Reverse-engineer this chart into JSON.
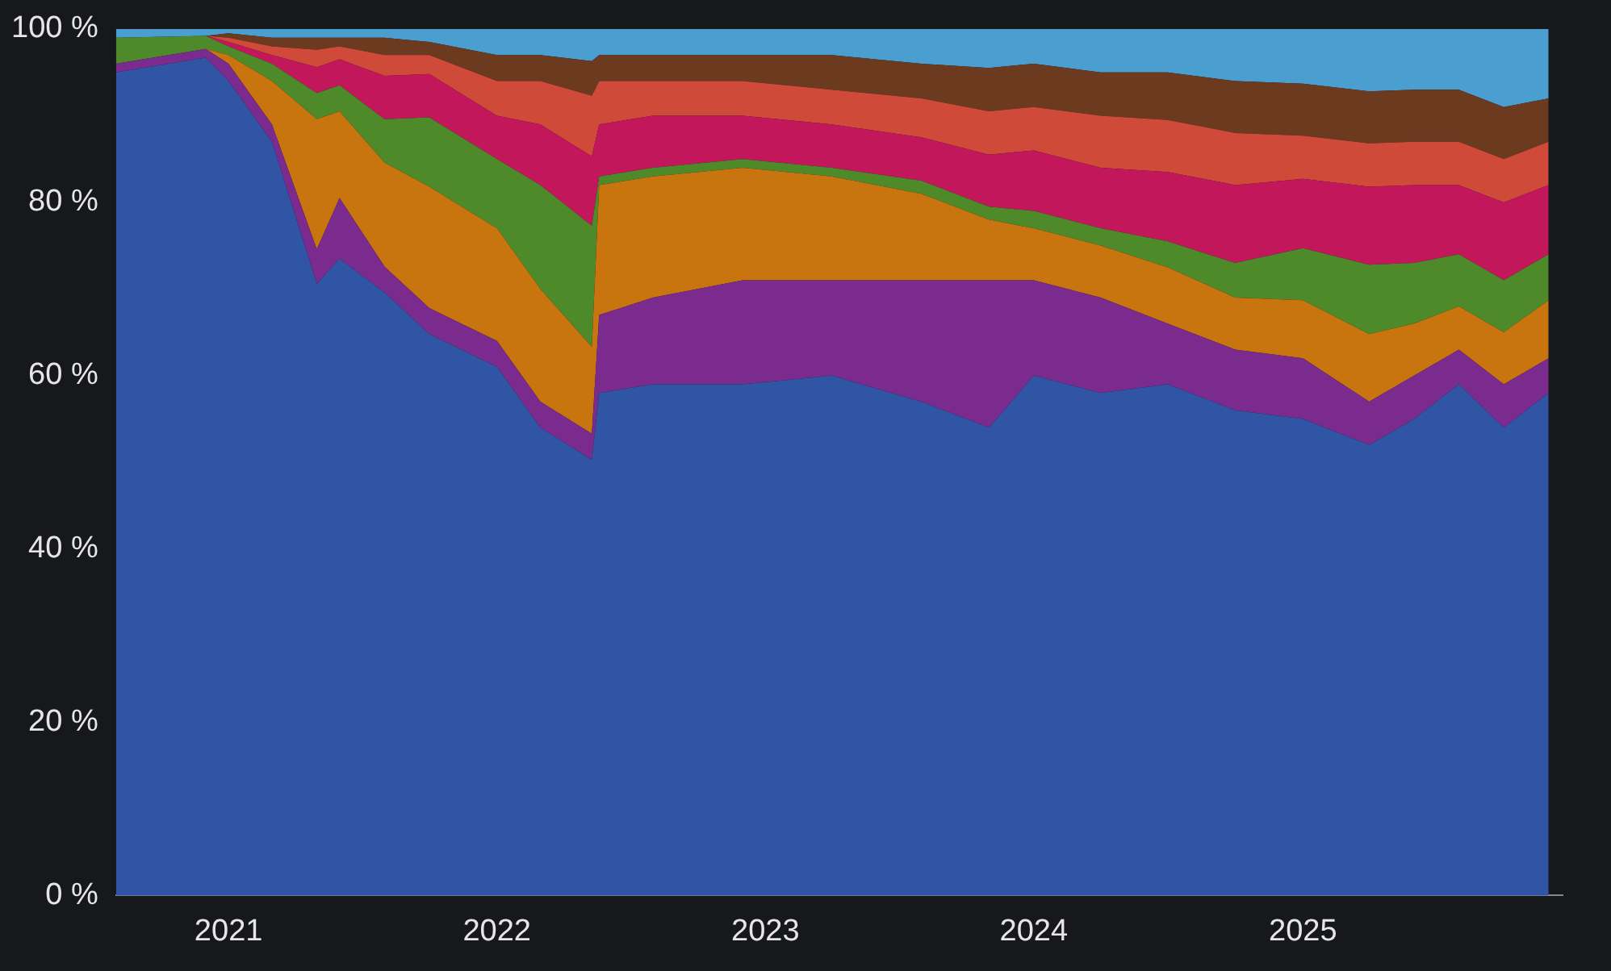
{
  "chart_data": {
    "type": "area",
    "stacked": true,
    "x": [
      "2020-08",
      "2020-12",
      "2021-01",
      "2021-03",
      "2021-05",
      "2021-06",
      "2021-08",
      "2021-10",
      "2022-01",
      "2022-03",
      "2022-05-10",
      "2022-05-20",
      "2022-08",
      "2022-12",
      "2023-04",
      "2023-08",
      "2023-11",
      "2024-01",
      "2024-04",
      "2024-07",
      "2024-10",
      "2025-01",
      "2025-04",
      "2025-06",
      "2025-08",
      "2025-10",
      "2025-12"
    ],
    "series": [
      {
        "color": "#2f55a4",
        "values": [
          95,
          96.7,
          94,
          87,
          70.6,
          73.5,
          69.6,
          64.8,
          61,
          54,
          50.3,
          58,
          59,
          59,
          60,
          57,
          54,
          60,
          58,
          59,
          56,
          55,
          52,
          55,
          59,
          54,
          58
        ]
      },
      {
        "color": "#7b2a8e",
        "values": [
          1,
          1,
          2,
          2,
          4,
          7,
          3,
          3,
          3,
          3,
          3,
          9,
          10,
          12,
          11,
          14,
          17,
          11,
          11,
          7,
          7,
          7,
          5,
          5,
          4,
          5,
          4
        ]
      },
      {
        "color": "#c87510",
        "values": [
          0,
          0,
          1,
          5,
          15,
          10,
          12,
          14,
          13,
          13,
          10,
          15,
          14,
          13,
          12,
          10,
          7,
          6,
          6,
          6.5,
          6,
          6.7,
          7.8,
          6,
          5,
          6,
          6.7
        ]
      },
      {
        "color": "#4e8a2a",
        "values": [
          3,
          1.5,
          1,
          2,
          3,
          3,
          5,
          8,
          8,
          12,
          14,
          1,
          1,
          1,
          1,
          1.5,
          1.5,
          2,
          2,
          3,
          4,
          6,
          8,
          7,
          6,
          6,
          5.3
        ]
      },
      {
        "color": "#c2185b",
        "values": [
          0,
          0,
          0.5,
          1,
          3,
          3,
          5,
          5,
          5,
          7,
          8,
          6,
          6,
          5,
          5,
          5,
          6,
          7,
          7,
          8,
          9,
          8,
          9,
          9,
          8,
          9,
          8
        ]
      },
      {
        "color": "#d04a3a",
        "values": [
          0,
          0,
          0.5,
          1,
          2,
          1.5,
          2.4,
          2.2,
          4,
          5,
          7,
          5,
          4,
          4,
          4,
          4.5,
          5,
          5,
          6,
          6,
          6,
          5,
          5,
          5,
          5,
          5,
          5
        ]
      },
      {
        "color": "#6b3a1f",
        "values": [
          0,
          0,
          0.5,
          1,
          1.4,
          1,
          2,
          1.5,
          3,
          3,
          4,
          3,
          3,
          3,
          4,
          4,
          5,
          5,
          5,
          5.5,
          6,
          6,
          6,
          6,
          6,
          6,
          5
        ]
      },
      {
        "color": "#4a9fd0",
        "values": [
          1,
          0.8,
          0.5,
          1,
          1,
          1,
          1,
          1.5,
          3,
          3,
          3.7,
          3,
          3,
          3,
          3,
          4,
          4.5,
          4,
          5,
          5,
          6,
          6.3,
          7.2,
          7,
          7,
          9,
          8
        ]
      }
    ],
    "xlim": [
      "2020-08",
      "2025-12-20"
    ],
    "xticks": [
      "2021",
      "2022",
      "2023",
      "2024",
      "2025"
    ],
    "ylim": [
      0,
      100
    ],
    "yticks": [
      {
        "value": 0,
        "label": "0 %"
      },
      {
        "value": 20,
        "label": "20 %"
      },
      {
        "value": 40,
        "label": "40 %"
      },
      {
        "value": 60,
        "label": "60 %"
      },
      {
        "value": 80,
        "label": "80 %"
      },
      {
        "value": 100,
        "label": "100 %"
      }
    ],
    "grid": false,
    "legend": false
  }
}
